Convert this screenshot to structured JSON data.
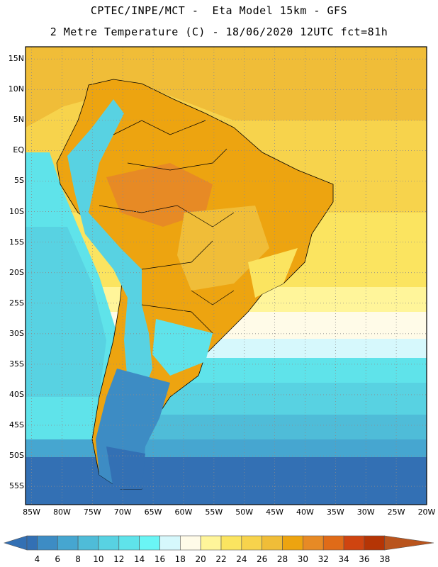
{
  "title": {
    "line1": "CPTEC/INPE/MCT -  Eta Model 15km - GFS",
    "line2": "2 Metre Temperature (C) - 18/06/2020 12UTC fct=81h"
  },
  "map": {
    "lat_labels": [
      "15N",
      "10N",
      "5N",
      "EQ",
      "5S",
      "10S",
      "15S",
      "20S",
      "25S",
      "30S",
      "35S",
      "40S",
      "45S",
      "50S",
      "55S"
    ],
    "lat_values": [
      15,
      10,
      5,
      0,
      -5,
      -10,
      -15,
      -20,
      -25,
      -30,
      -35,
      -40,
      -45,
      -50,
      -55
    ],
    "lon_labels": [
      "85W",
      "80W",
      "75W",
      "70W",
      "65W",
      "60W",
      "55W",
      "50W",
      "45W",
      "40W",
      "35W",
      "30W",
      "25W",
      "20W"
    ],
    "lon_values": [
      -85,
      -80,
      -75,
      -70,
      -65,
      -60,
      -55,
      -50,
      -45,
      -40,
      -35,
      -30,
      -25,
      -20
    ],
    "lat_range": [
      -58,
      17
    ],
    "lon_range": [
      -86,
      -20
    ]
  },
  "colorbar": {
    "ticks": [
      "4",
      "6",
      "8",
      "10",
      "12",
      "14",
      "16",
      "18",
      "20",
      "22",
      "24",
      "26",
      "28",
      "30",
      "32",
      "34",
      "36",
      "38"
    ],
    "colors": [
      "#3370b4",
      "#3d8cc4",
      "#46a6d0",
      "#4fbcd8",
      "#58d2e2",
      "#5fe3ea",
      "#6af5f5",
      "#d6f8fc",
      "#fffbe8",
      "#fff59a",
      "#fbe460",
      "#f7d34c",
      "#f0bd38",
      "#eda410",
      "#e78a25",
      "#e06b18",
      "#cf4410",
      "#b53505",
      "#b9541d"
    ]
  }
}
